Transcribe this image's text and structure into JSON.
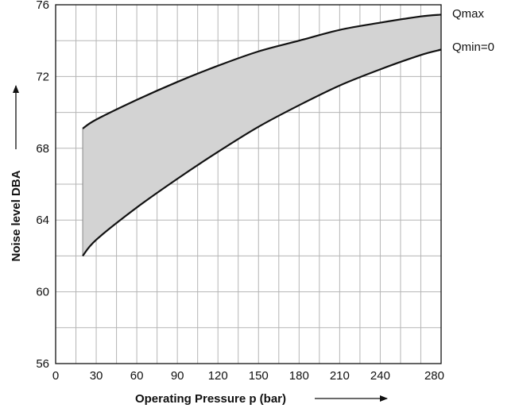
{
  "chart_data": {
    "type": "area",
    "xlabel": "Operating Pressure p (bar)",
    "ylabel": "Noise level DBA",
    "xlim": [
      0,
      285
    ],
    "ylim": [
      56,
      76
    ],
    "x_ticks": [
      0,
      30,
      60,
      90,
      120,
      150,
      180,
      210,
      240,
      280
    ],
    "y_ticks": [
      56,
      60,
      64,
      68,
      72,
      76
    ],
    "grid": true,
    "band_fill": "#d3d3d3",
    "line_color": "#111111",
    "series": [
      {
        "name": "Qmax",
        "x": [
          20,
          30,
          60,
          90,
          120,
          150,
          180,
          210,
          240,
          270,
          285
        ],
        "y": [
          69.1,
          69.6,
          70.7,
          71.7,
          72.6,
          73.4,
          74.0,
          74.6,
          75.0,
          75.35,
          75.45
        ]
      },
      {
        "name": "Qmin=0",
        "x": [
          20,
          30,
          60,
          90,
          120,
          150,
          180,
          210,
          240,
          270,
          285
        ],
        "y": [
          62.0,
          62.9,
          64.7,
          66.3,
          67.8,
          69.2,
          70.4,
          71.5,
          72.4,
          73.2,
          73.5
        ]
      }
    ]
  }
}
